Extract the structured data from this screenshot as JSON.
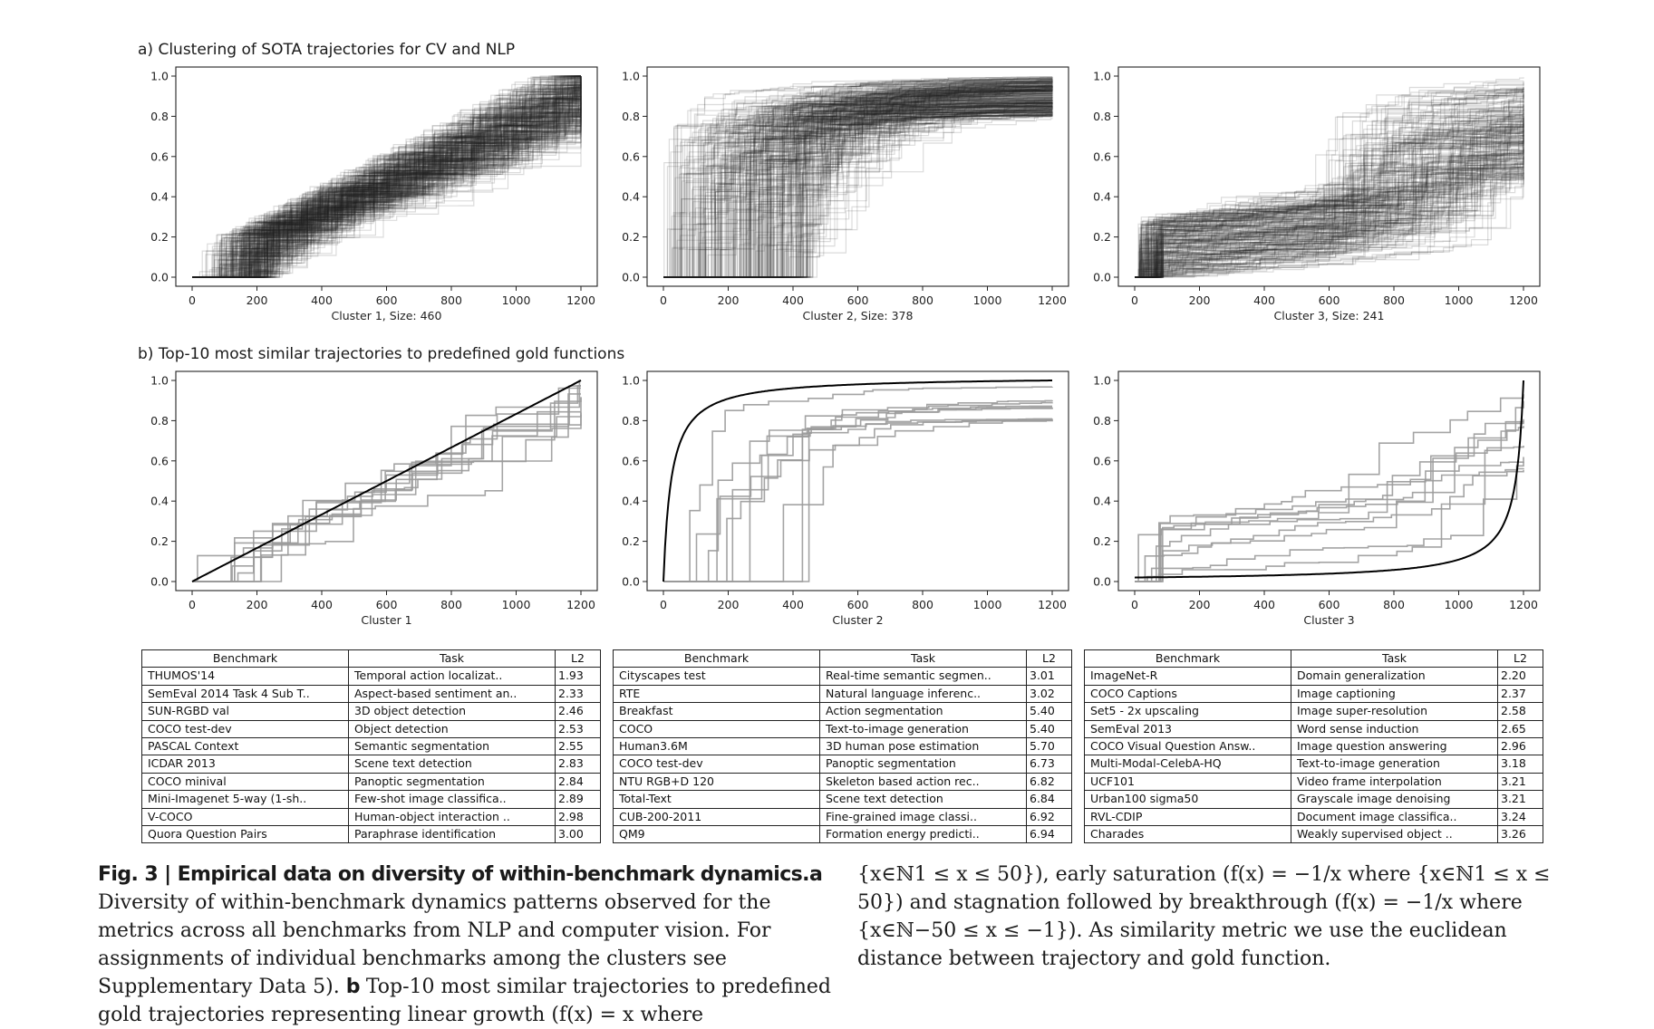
{
  "sections": {
    "a_title": "a) Clustering of SOTA trajectories for CV and NLP",
    "b_title": "b) Top-10 most similar trajectories to predefined gold functions"
  },
  "colors": {
    "line": "#1f1f1f",
    "faint_line": "#9a9a9a",
    "gold_line": "#000000"
  },
  "chart_data": [
    {
      "type": "line",
      "panel": "a1",
      "xlabel": "Cluster 1, Size: 460",
      "ylabel": "",
      "xlim": [
        0,
        1200
      ],
      "ylim": [
        0,
        1
      ],
      "xticks": [
        "0",
        "200",
        "400",
        "600",
        "800",
        "1000",
        "1200"
      ],
      "yticks": [
        "0.0",
        "0.2",
        "0.4",
        "0.6",
        "0.8",
        "1.0"
      ],
      "pattern": "linear-growth",
      "series_count": 460
    },
    {
      "type": "line",
      "panel": "a2",
      "xlabel": "Cluster 2, Size: 378",
      "ylabel": "",
      "xlim": [
        0,
        1200
      ],
      "ylim": [
        0,
        1
      ],
      "xticks": [
        "0",
        "200",
        "400",
        "600",
        "800",
        "1000",
        "1200"
      ],
      "yticks": [
        "0.0",
        "0.2",
        "0.4",
        "0.6",
        "0.8",
        "1.0"
      ],
      "pattern": "early-saturation",
      "series_count": 378
    },
    {
      "type": "line",
      "panel": "a3",
      "xlabel": "Cluster 3, Size: 241",
      "ylabel": "",
      "xlim": [
        0,
        1200
      ],
      "ylim": [
        0,
        1
      ],
      "xticks": [
        "0",
        "200",
        "400",
        "600",
        "800",
        "1000",
        "1200"
      ],
      "yticks": [
        "0.0",
        "0.2",
        "0.4",
        "0.6",
        "0.8",
        "1.0"
      ],
      "pattern": "stagnation-breakthrough",
      "series_count": 241
    },
    {
      "type": "line",
      "panel": "b1",
      "xlabel": "Cluster 1",
      "ylabel": "",
      "xlim": [
        0,
        1200
      ],
      "ylim": [
        0,
        1
      ],
      "xticks": [
        "0",
        "200",
        "400",
        "600",
        "800",
        "1000",
        "1200"
      ],
      "yticks": [
        "0.0",
        "0.2",
        "0.4",
        "0.6",
        "0.8",
        "1.0"
      ],
      "pattern": "linear-growth",
      "series_count": 10,
      "gold": "linear"
    },
    {
      "type": "line",
      "panel": "b2",
      "xlabel": "Cluster 2",
      "ylabel": "",
      "xlim": [
        0,
        1200
      ],
      "ylim": [
        0,
        1
      ],
      "xticks": [
        "0",
        "200",
        "400",
        "600",
        "800",
        "1000",
        "1200"
      ],
      "yticks": [
        "0.0",
        "0.2",
        "0.4",
        "0.6",
        "0.8",
        "1.0"
      ],
      "pattern": "early-saturation",
      "series_count": 10,
      "gold": "saturation"
    },
    {
      "type": "line",
      "panel": "b3",
      "xlabel": "Cluster 3",
      "ylabel": "",
      "xlim": [
        0,
        1200
      ],
      "ylim": [
        0,
        1
      ],
      "xticks": [
        "0",
        "200",
        "400",
        "600",
        "800",
        "1000",
        "1200"
      ],
      "yticks": [
        "0.0",
        "0.2",
        "0.4",
        "0.6",
        "0.8",
        "1.0"
      ],
      "pattern": "stagnation-breakthrough",
      "series_count": 10,
      "gold": "breakthrough"
    }
  ],
  "tables": [
    {
      "headers": [
        "Benchmark",
        "Task",
        "L2"
      ],
      "rows": [
        [
          "THUMOS'14",
          "Temporal action localizat..",
          "1.93"
        ],
        [
          "SemEval 2014 Task 4 Sub T..",
          "Aspect-based sentiment an..",
          "2.33"
        ],
        [
          "SUN-RGBD val",
          "3D object detection",
          "2.46"
        ],
        [
          "COCO test-dev",
          "Object detection",
          "2.53"
        ],
        [
          "PASCAL Context",
          "Semantic segmentation",
          "2.55"
        ],
        [
          "ICDAR 2013",
          "Scene text detection",
          "2.83"
        ],
        [
          "COCO minival",
          "Panoptic segmentation",
          "2.84"
        ],
        [
          "Mini-Imagenet 5-way (1-sh..",
          "Few-shot image classifica..",
          "2.89"
        ],
        [
          "V-COCO",
          "Human-object interaction ..",
          "2.98"
        ],
        [
          "Quora Question Pairs",
          "Paraphrase identification",
          "3.00"
        ]
      ]
    },
    {
      "headers": [
        "Benchmark",
        "Task",
        "L2"
      ],
      "rows": [
        [
          "Cityscapes test",
          "Real-time semantic segmen..",
          "3.01"
        ],
        [
          "RTE",
          "Natural language inferenc..",
          "3.02"
        ],
        [
          "Breakfast",
          "Action segmentation",
          "5.40"
        ],
        [
          "COCO",
          "Text-to-image generation",
          "5.40"
        ],
        [
          "Human3.6M",
          "3D human pose estimation",
          "5.70"
        ],
        [
          "COCO test-dev",
          "Panoptic segmentation",
          "6.73"
        ],
        [
          "NTU RGB+D 120",
          "Skeleton based action rec..",
          "6.82"
        ],
        [
          "Total-Text",
          "Scene text detection",
          "6.84"
        ],
        [
          "CUB-200-2011",
          "Fine-grained image classi..",
          "6.92"
        ],
        [
          "QM9",
          "Formation energy predicti..",
          "6.94"
        ]
      ]
    },
    {
      "headers": [
        "Benchmark",
        "Task",
        "L2"
      ],
      "rows": [
        [
          "ImageNet-R",
          "Domain generalization",
          "2.20"
        ],
        [
          "COCO Captions",
          "Image captioning",
          "2.37"
        ],
        [
          "Set5 - 2x upscaling",
          "Image super-resolution",
          "2.58"
        ],
        [
          "SemEval 2013",
          "Word sense induction",
          "2.65"
        ],
        [
          "COCO Visual Question Answ..",
          "Image question answering",
          "2.96"
        ],
        [
          "Multi-Modal-CelebA-HQ",
          "Text-to-image generation",
          "3.18"
        ],
        [
          "UCF101",
          "Video frame interpolation",
          "3.21"
        ],
        [
          "Urban100 sigma50",
          "Grayscale image denoising",
          "3.21"
        ],
        [
          "RVL-CDIP",
          "Document image classifica..",
          "3.24"
        ],
        [
          "Charades",
          "Weakly supervised object ..",
          "3.26"
        ]
      ]
    }
  ],
  "caption": {
    "fig_label": "Fig. 3 | Empirical data on diversity of within-benchmark dynamics.",
    "left": [
      {
        "bold": "a",
        "text": " Diversity of within-benchmark dynamics patterns observed for the metrics across all benchmarks from NLP and computer vision. For assignments of individual benchmarks among the clusters see Supplementary Data 5). "
      },
      {
        "bold": "b",
        "text": " Top-10 most similar trajectories to predefined gold trajectories representing linear growth (f(x) = x where"
      }
    ],
    "right": "{x∈ℕ1 ≤ x ≤ 50}), early saturation (f(x) = −1/x where {x∈ℕ1 ≤ x ≤ 50}) and stagnation followed by breakthrough (f(x) = −1/x where {x∈ℕ−50 ≤ x ≤ −1}). As similarity metric we use the euclidean distance between trajectory and gold function."
  }
}
